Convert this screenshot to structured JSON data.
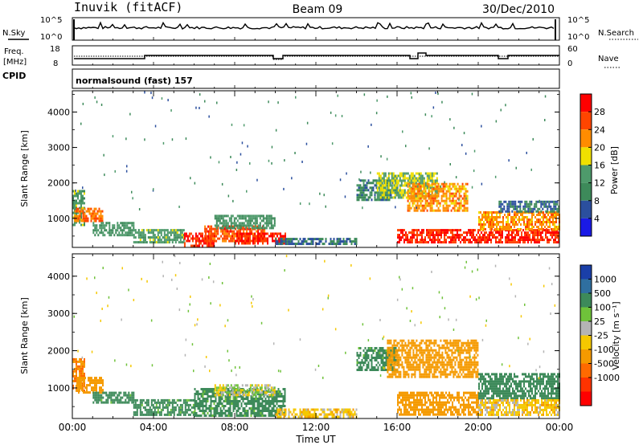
{
  "header": {
    "title": "Inuvik (fitACF)",
    "beam": "Beam 09",
    "date": "30/Dec/2010"
  },
  "summary_panels": {
    "nsky_label": "N.Sky",
    "nsky_top": "10^5",
    "nsky_bottom": "10^0",
    "nsearch_label": "N.Search",
    "nsearch_top": "10^5",
    "nsearch_bottom": "10^0",
    "freq_label_1": "Freq.",
    "freq_label_2": "[MHz]",
    "freq_top": "18",
    "freq_bottom": "8",
    "nave_label": "Nave",
    "nave_top": "60",
    "nave_bottom": "0",
    "cpid_label": "CPID",
    "cpid_text": "normalsound (fast) 157"
  },
  "colors": {
    "power_scale": [
      "#1a1ae6",
      "#2b4f9e",
      "#3d8a5a",
      "#4e9a6b",
      "#f0e000",
      "#ff8c00",
      "#ff4500",
      "#ff0000"
    ],
    "velocity_scale": [
      "#1a3fa8",
      "#2f6fa0",
      "#3d8a5a",
      "#6fc23a",
      "#b4b4b4",
      "#f5c800",
      "#f59a00",
      "#ff6a00",
      "#ff3300",
      "#ff0000"
    ]
  },
  "chart_data": [
    {
      "type": "heatmap",
      "name": "power",
      "ylabel": "Slant Range [km]",
      "ylim": [
        180,
        4600
      ],
      "yticks": [
        "1000",
        "2000",
        "3000",
        "4000"
      ],
      "xlim": [
        "00:00",
        "24:00"
      ],
      "colorbar_label": "Power [dB]",
      "colorbar_ticks": [
        "4",
        "8",
        "12",
        "16",
        "20",
        "24",
        "28"
      ],
      "colorbar_range": [
        0,
        32
      ],
      "regions": [
        {
          "t": [
            0.0,
            0.6
          ],
          "r": [
            800,
            1800
          ],
          "v": 14
        },
        {
          "t": [
            0.1,
            1.5
          ],
          "r": [
            900,
            1300
          ],
          "v": 24
        },
        {
          "t": [
            1.0,
            3.0
          ],
          "r": [
            500,
            900
          ],
          "v": 12
        },
        {
          "t": [
            3.0,
            5.5
          ],
          "r": [
            300,
            700
          ],
          "v": 14
        },
        {
          "t": [
            5.5,
            7.0
          ],
          "r": [
            250,
            600
          ],
          "v": 28
        },
        {
          "t": [
            6.5,
            9.5
          ],
          "r": [
            350,
            800
          ],
          "v": 26
        },
        {
          "t": [
            7.0,
            10.0
          ],
          "r": [
            700,
            1100
          ],
          "v": 12
        },
        {
          "t": [
            8.0,
            10.5
          ],
          "r": [
            300,
            600
          ],
          "v": 28
        },
        {
          "t": [
            10.0,
            14.0
          ],
          "r": [
            250,
            450
          ],
          "v": 8
        },
        {
          "t": [
            14.0,
            16.0
          ],
          "r": [
            1500,
            2100
          ],
          "v": 10
        },
        {
          "t": [
            15.0,
            18.0
          ],
          "r": [
            1600,
            2300
          ],
          "v": 16
        },
        {
          "t": [
            16.5,
            19.5
          ],
          "r": [
            1200,
            2000
          ],
          "v": 22
        },
        {
          "t": [
            16.0,
            24.0
          ],
          "r": [
            300,
            700
          ],
          "v": 28
        },
        {
          "t": [
            20.0,
            24.0
          ],
          "r": [
            700,
            1200
          ],
          "v": 22
        },
        {
          "t": [
            21.0,
            24.0
          ],
          "r": [
            1200,
            1500
          ],
          "v": 8
        }
      ]
    },
    {
      "type": "heatmap",
      "name": "velocity",
      "ylabel": "Slant Range [km]",
      "ylim": [
        180,
        4600
      ],
      "yticks": [
        "1000",
        "2000",
        "3000",
        "4000"
      ],
      "xlabel": "Time UT",
      "xticks": [
        "00:00",
        "04:00",
        "08:00",
        "12:00",
        "16:00",
        "20:00",
        "00:00"
      ],
      "colorbar_label": "Velocity [m s⁻¹]",
      "colorbar_ticks": [
        "1000",
        "500",
        "100",
        "25",
        "-25",
        "-100",
        "-500",
        "-1000"
      ],
      "regions": [
        {
          "t": [
            0.0,
            0.6
          ],
          "r": [
            900,
            1800
          ],
          "v": -500
        },
        {
          "t": [
            0.2,
            1.5
          ],
          "r": [
            900,
            1300
          ],
          "v": -250
        },
        {
          "t": [
            1.0,
            3.0
          ],
          "r": [
            600,
            900
          ],
          "v": 150
        },
        {
          "t": [
            3.0,
            6.0
          ],
          "r": [
            300,
            700
          ],
          "v": 150
        },
        {
          "t": [
            6.0,
            10.5
          ],
          "r": [
            250,
            1000
          ],
          "v": 150
        },
        {
          "t": [
            7.0,
            10.0
          ],
          "r": [
            800,
            1100
          ],
          "v": 0
        },
        {
          "t": [
            10.0,
            14.0
          ],
          "r": [
            250,
            450
          ],
          "v": -60
        },
        {
          "t": [
            14.0,
            16.0
          ],
          "r": [
            1500,
            2100
          ],
          "v": 150
        },
        {
          "t": [
            15.5,
            20.0
          ],
          "r": [
            1300,
            2300
          ],
          "v": -250
        },
        {
          "t": [
            16.0,
            20.0
          ],
          "r": [
            300,
            900
          ],
          "v": -300
        },
        {
          "t": [
            20.0,
            24.0
          ],
          "r": [
            700,
            1400
          ],
          "v": 200
        },
        {
          "t": [
            20.0,
            24.0
          ],
          "r": [
            300,
            700
          ],
          "v": -60
        }
      ]
    }
  ]
}
